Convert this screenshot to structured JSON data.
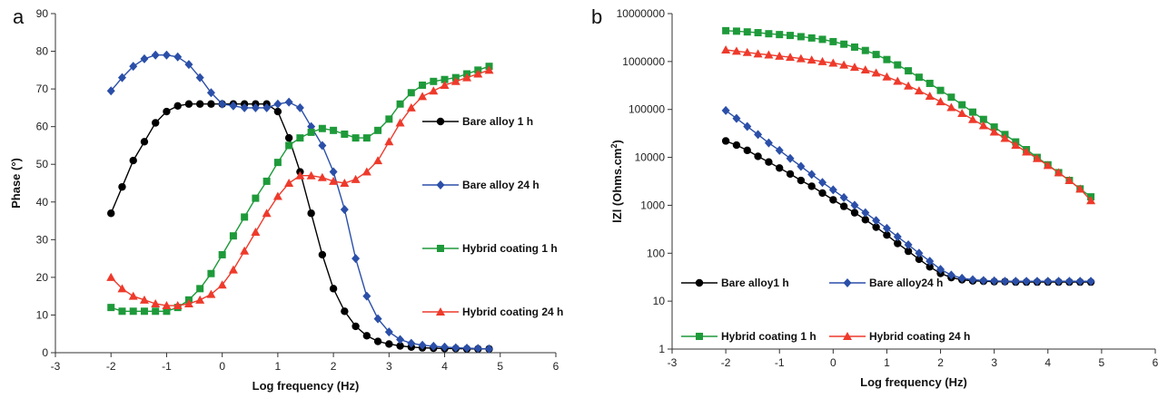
{
  "chart_data": [
    {
      "type": "line",
      "panel_label": "a",
      "xlabel": "Log frequency (Hz)",
      "ylabel": "Phase (°)",
      "xlim": [
        -3,
        6
      ],
      "ylim": [
        0,
        90
      ],
      "xticks": [
        "-3",
        "-2",
        "-1",
        "0",
        "1",
        "2",
        "3",
        "4",
        "5",
        "6"
      ],
      "yticks": [
        "0",
        "10",
        "20",
        "30",
        "40",
        "50",
        "60",
        "70",
        "80",
        "90"
      ],
      "legend_placement": "right",
      "series": [
        {
          "name": "Bare alloy 1 h",
          "color": "#000000",
          "marker": "circle",
          "x": [
            -2,
            -1.8,
            -1.6,
            -1.4,
            -1.2,
            -1,
            -0.8,
            -0.6,
            -0.4,
            -0.2,
            0,
            0.2,
            0.4,
            0.6,
            0.8,
            1,
            1.2,
            1.4,
            1.6,
            1.8,
            2,
            2.2,
            2.4,
            2.6,
            2.8,
            3,
            3.2,
            3.4,
            3.6,
            3.8,
            4,
            4.2,
            4.4,
            4.6,
            4.8
          ],
          "y": [
            37,
            44,
            51,
            56,
            61,
            64,
            65.5,
            66,
            66,
            66,
            66,
            66,
            66,
            66,
            66,
            64,
            57,
            48,
            37,
            26,
            17,
            11,
            7,
            4.5,
            3,
            2.3,
            1.8,
            1.5,
            1.3,
            1.2,
            1.1,
            1.1,
            1,
            1,
            1
          ]
        },
        {
          "name": "Bare alloy 24 h",
          "color": "#2b4fa8",
          "marker": "diamond",
          "x": [
            -2,
            -1.8,
            -1.6,
            -1.4,
            -1.2,
            -1,
            -0.8,
            -0.6,
            -0.4,
            -0.2,
            0,
            0.2,
            0.4,
            0.6,
            0.8,
            1,
            1.2,
            1.4,
            1.6,
            1.8,
            2,
            2.2,
            2.4,
            2.6,
            2.8,
            3,
            3.2,
            3.4,
            3.6,
            3.8,
            4,
            4.2,
            4.4,
            4.6,
            4.8
          ],
          "y": [
            69.5,
            73,
            76,
            78,
            79,
            79,
            78.5,
            76.5,
            73,
            69,
            66,
            65.5,
            65,
            65,
            65,
            66,
            66.5,
            65,
            60,
            55,
            48,
            38,
            25,
            15,
            9,
            5.5,
            3.5,
            2.5,
            2,
            1.7,
            1.5,
            1.3,
            1.2,
            1.1,
            1
          ]
        },
        {
          "name": "Hybrid coating 1 h",
          "color": "#1e9a3a",
          "marker": "square",
          "x": [
            -2,
            -1.8,
            -1.6,
            -1.4,
            -1.2,
            -1,
            -0.8,
            -0.6,
            -0.4,
            -0.2,
            0,
            0.2,
            0.4,
            0.6,
            0.8,
            1,
            1.2,
            1.4,
            1.6,
            1.8,
            2,
            2.2,
            2.4,
            2.6,
            2.8,
            3,
            3.2,
            3.4,
            3.6,
            3.8,
            4,
            4.2,
            4.4,
            4.6,
            4.8
          ],
          "y": [
            12,
            11,
            11,
            11,
            11,
            11,
            12,
            14,
            17,
            21,
            26,
            31,
            36,
            41,
            45.5,
            50.5,
            55,
            57,
            58.5,
            59.5,
            59,
            58,
            57,
            57,
            59,
            62,
            66,
            69,
            71,
            72,
            72.5,
            73,
            74,
            75,
            76
          ]
        },
        {
          "name": "Hybrid coating 24 h",
          "color": "#ee3a2b",
          "marker": "triangle",
          "x": [
            -2,
            -1.8,
            -1.6,
            -1.4,
            -1.2,
            -1,
            -0.8,
            -0.6,
            -0.4,
            -0.2,
            0,
            0.2,
            0.4,
            0.6,
            0.8,
            1,
            1.2,
            1.4,
            1.6,
            1.8,
            2,
            2.2,
            2.4,
            2.6,
            2.8,
            3,
            3.2,
            3.4,
            3.6,
            3.8,
            4,
            4.2,
            4.4,
            4.6,
            4.8
          ],
          "y": [
            20,
            17,
            15,
            14,
            13,
            12.5,
            12.5,
            13,
            14,
            15.5,
            18,
            22,
            27,
            32,
            37,
            41.5,
            45,
            47,
            47,
            46.5,
            45.5,
            45,
            46,
            48,
            51,
            56,
            61,
            65,
            68,
            69.5,
            71,
            72,
            73,
            74,
            75
          ]
        }
      ]
    },
    {
      "type": "line",
      "panel_label": "b",
      "xlabel": "Log frequency (Hz)",
      "ylabel": "|Z| (Ohms.cm²)",
      "ylabel_parts": [
        "lZl (Ohms.cm",
        "2",
        ")"
      ],
      "yscale": "log",
      "xlim": [
        -3,
        6
      ],
      "ylim": [
        1,
        10000000
      ],
      "xticks": [
        "-3",
        "-2",
        "-1",
        "0",
        "1",
        "2",
        "3",
        "4",
        "5",
        "6"
      ],
      "yticks": [
        "1",
        "10",
        "100",
        "1000",
        "10000",
        "100000",
        "1000000",
        "10000000"
      ],
      "legend_placement": "bottom",
      "series": [
        {
          "name": "Bare alloy1 h",
          "color": "#000000",
          "marker": "circle",
          "x": [
            -2,
            -1.8,
            -1.6,
            -1.4,
            -1.2,
            -1,
            -0.8,
            -0.6,
            -0.4,
            -0.2,
            0,
            0.2,
            0.4,
            0.6,
            0.8,
            1,
            1.2,
            1.4,
            1.6,
            1.8,
            2,
            2.2,
            2.4,
            2.6,
            2.8,
            3,
            3.2,
            3.4,
            3.6,
            3.8,
            4,
            4.2,
            4.4,
            4.6,
            4.8
          ],
          "y": [
            22000,
            18000,
            14000,
            10500,
            8000,
            6000,
            4500,
            3300,
            2500,
            1800,
            1300,
            950,
            700,
            500,
            350,
            240,
            160,
            110,
            75,
            52,
            38,
            31,
            28,
            26.5,
            26,
            25.5,
            25.5,
            25,
            25,
            25,
            25,
            25,
            25,
            25,
            25
          ]
        },
        {
          "name": "Bare alloy24 h",
          "color": "#2b4fa8",
          "marker": "diamond",
          "x": [
            -2,
            -1.8,
            -1.6,
            -1.4,
            -1.2,
            -1,
            -0.8,
            -0.6,
            -0.4,
            -0.2,
            0,
            0.2,
            0.4,
            0.6,
            0.8,
            1,
            1.2,
            1.4,
            1.6,
            1.8,
            2,
            2.2,
            2.4,
            2.6,
            2.8,
            3,
            3.2,
            3.4,
            3.6,
            3.8,
            4,
            4.2,
            4.4,
            4.6,
            4.8
          ],
          "y": [
            95000,
            65000,
            44000,
            30000,
            20000,
            14000,
            9500,
            6500,
            4400,
            3000,
            2100,
            1450,
            1000,
            700,
            480,
            330,
            220,
            150,
            100,
            68,
            46,
            35,
            30,
            28,
            27,
            26.5,
            26,
            26,
            26,
            26,
            26,
            26,
            26,
            26,
            26
          ]
        },
        {
          "name": "Hybrid coating 1 h",
          "color": "#1e9a3a",
          "marker": "square",
          "x": [
            -2,
            -1.8,
            -1.6,
            -1.4,
            -1.2,
            -1,
            -0.8,
            -0.6,
            -0.4,
            -0.2,
            0,
            0.2,
            0.4,
            0.6,
            0.8,
            1,
            1.2,
            1.4,
            1.6,
            1.8,
            2,
            2.2,
            2.4,
            2.6,
            2.8,
            3,
            3.2,
            3.4,
            3.6,
            3.8,
            4,
            4.2,
            4.4,
            4.6,
            4.8
          ],
          "y": [
            4400000,
            4300000,
            4150000,
            4000000,
            3800000,
            3650000,
            3500000,
            3300000,
            3100000,
            2900000,
            2600000,
            2300000,
            2000000,
            1700000,
            1400000,
            1100000,
            850000,
            640000,
            470000,
            350000,
            250000,
            180000,
            125000,
            88000,
            62000,
            43000,
            30000,
            21000,
            14500,
            10000,
            7000,
            4800,
            3300,
            2200,
            1500
          ]
        },
        {
          "name": "Hybrid coating 24 h",
          "color": "#ee3a2b",
          "marker": "triangle",
          "x": [
            -2,
            -1.8,
            -1.6,
            -1.4,
            -1.2,
            -1,
            -0.8,
            -0.6,
            -0.4,
            -0.2,
            0,
            0.2,
            0.4,
            0.6,
            0.8,
            1,
            1.2,
            1.4,
            1.6,
            1.8,
            2,
            2.2,
            2.4,
            2.6,
            2.8,
            3,
            3.2,
            3.4,
            3.6,
            3.8,
            4,
            4.2,
            4.4,
            4.6,
            4.8
          ],
          "y": [
            1750000,
            1650000,
            1550000,
            1450000,
            1380000,
            1300000,
            1230000,
            1150000,
            1080000,
            1000000,
            930000,
            850000,
            760000,
            670000,
            580000,
            480000,
            390000,
            310000,
            245000,
            190000,
            145000,
            110000,
            83000,
            62000,
            46000,
            34000,
            25000,
            18000,
            13000,
            9500,
            6800,
            4800,
            3300,
            2200,
            1250
          ]
        }
      ]
    }
  ]
}
